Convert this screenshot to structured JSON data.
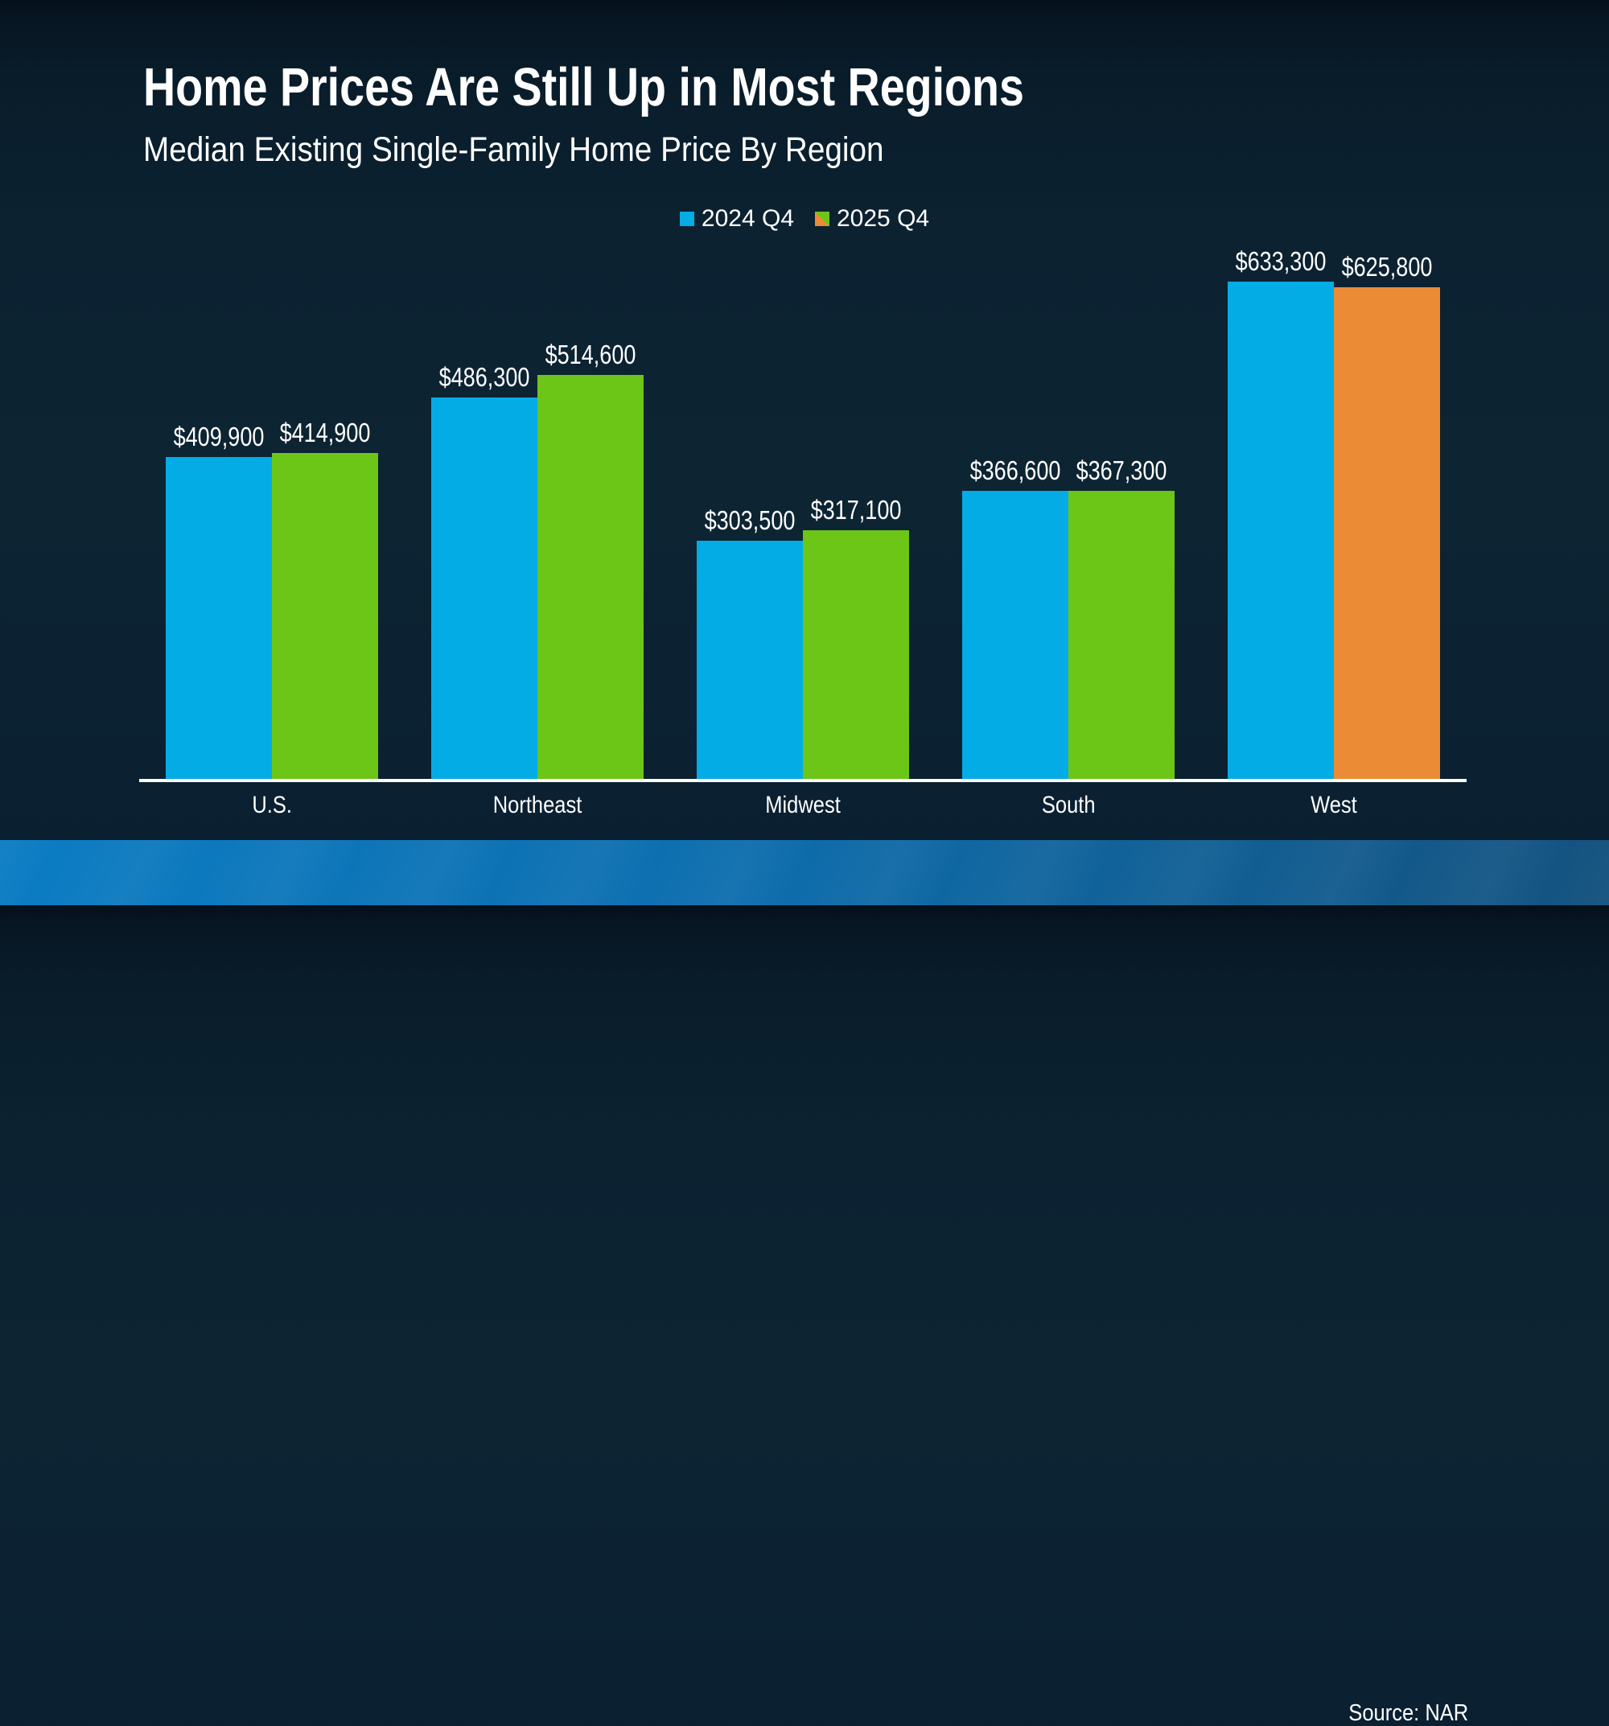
{
  "slide": {
    "title": "Home Prices Are Still Up in Most Regions",
    "subtitle": "Median Existing Single-Family Home Price By Region",
    "source": "Source: NAR"
  },
  "legend": [
    {
      "label": "2024 Q4",
      "colors": [
        "#04ACE6"
      ]
    },
    {
      "label": "2025 Q4",
      "colors": [
        "#6CC617",
        "#EB8B35"
      ]
    }
  ],
  "chart_data": {
    "type": "bar",
    "title": "Home Prices Are Still Up in Most Regions",
    "subtitle": "Median Existing Single-Family Home Price By Region",
    "categories": [
      "U.S.",
      "Northeast",
      "Midwest",
      "South",
      "West"
    ],
    "series": [
      {
        "name": "2024 Q4",
        "color": "#04ACE6",
        "values": [
          409900,
          486300,
          303500,
          366600,
          633300
        ],
        "labels": [
          "$409,900",
          "$486,300",
          "$303,500",
          "$366,600",
          "$633,300"
        ]
      },
      {
        "name": "2025 Q4",
        "color": "#6CC617",
        "bar_colors": [
          "#6CC617",
          "#6CC617",
          "#6CC617",
          "#6CC617",
          "#EB8B35"
        ],
        "values": [
          414900,
          514600,
          317100,
          367300,
          625800
        ],
        "labels": [
          "$414,900",
          "$514,600",
          "$317,100",
          "$367,300",
          "$625,800"
        ]
      }
    ],
    "ylim": [
      0,
      660000
    ],
    "grid": false,
    "legend_position": "top-center",
    "value_labels": true,
    "source": "Source: NAR"
  },
  "colors": {
    "background": "#0c2231",
    "text": "#ffffff",
    "axis_line": "#ffffff",
    "footer_left": "#0b7cc3",
    "footer_right": "#14527f"
  }
}
